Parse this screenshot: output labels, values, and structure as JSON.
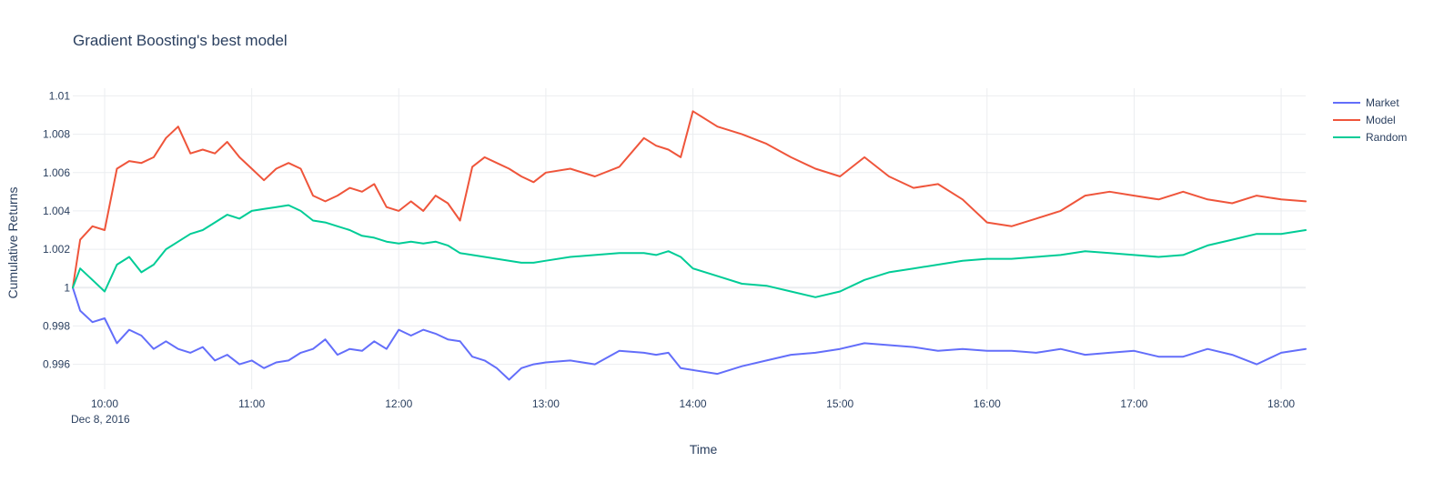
{
  "chart_data": {
    "type": "line",
    "title": "Gradient Boosting's best model",
    "xlabel": "Time",
    "ylabel": "Cumulative Returns",
    "x_tick_labels": [
      "10:00",
      "11:00",
      "12:00",
      "13:00",
      "14:00",
      "15:00",
      "16:00",
      "17:00",
      "18:00"
    ],
    "x_tick_hours": [
      10,
      11,
      12,
      13,
      14,
      15,
      16,
      17,
      18
    ],
    "x_first_tick_date": "Dec 8, 2016",
    "y_tick_labels": [
      "0.996",
      "0.998",
      "1",
      "1.002",
      "1.004",
      "1.006",
      "1.008",
      "1.01"
    ],
    "y_tick_values": [
      0.996,
      0.998,
      1.0,
      1.002,
      1.004,
      1.006,
      1.008,
      1.01
    ],
    "xlim": [
      "2016-12-08 09:47",
      "2016-12-08 18:10"
    ],
    "ylim": [
      0.9947,
      1.0104
    ],
    "grid": true,
    "legend_position": "top-right",
    "x": [
      "09:47",
      "09:50",
      "09:55",
      "10:00",
      "10:05",
      "10:10",
      "10:15",
      "10:20",
      "10:25",
      "10:30",
      "10:35",
      "10:40",
      "10:45",
      "10:50",
      "10:55",
      "11:00",
      "11:05",
      "11:10",
      "11:15",
      "11:20",
      "11:25",
      "11:30",
      "11:35",
      "11:40",
      "11:45",
      "11:50",
      "11:55",
      "12:00",
      "12:05",
      "12:10",
      "12:15",
      "12:20",
      "12:25",
      "12:30",
      "12:35",
      "12:40",
      "12:45",
      "12:50",
      "12:55",
      "13:00",
      "13:10",
      "13:20",
      "13:30",
      "13:40",
      "13:45",
      "13:50",
      "13:55",
      "14:00",
      "14:10",
      "14:20",
      "14:30",
      "14:40",
      "14:50",
      "15:00",
      "15:10",
      "15:20",
      "15:30",
      "15:40",
      "15:50",
      "16:00",
      "16:10",
      "16:20",
      "16:30",
      "16:40",
      "16:50",
      "17:00",
      "17:10",
      "17:20",
      "17:30",
      "17:40",
      "17:50",
      "18:00",
      "18:10"
    ],
    "series": [
      {
        "name": "Market",
        "color": "#636efa",
        "values": [
          1.0,
          0.9988,
          0.9982,
          0.9984,
          0.9971,
          0.9978,
          0.9975,
          0.9968,
          0.9972,
          0.9968,
          0.9966,
          0.9969,
          0.9962,
          0.9965,
          0.996,
          0.9962,
          0.9958,
          0.9961,
          0.9962,
          0.9966,
          0.9968,
          0.9973,
          0.9965,
          0.9968,
          0.9967,
          0.9972,
          0.9968,
          0.9978,
          0.9975,
          0.9978,
          0.9976,
          0.9973,
          0.9972,
          0.9964,
          0.9962,
          0.9958,
          0.9952,
          0.9958,
          0.996,
          0.9961,
          0.9962,
          0.996,
          0.9967,
          0.9966,
          0.9965,
          0.9966,
          0.9958,
          0.9957,
          0.9955,
          0.9959,
          0.9962,
          0.9965,
          0.9966,
          0.9968,
          0.9971,
          0.997,
          0.9969,
          0.9967,
          0.9968,
          0.9967,
          0.9967,
          0.9966,
          0.9968,
          0.9965,
          0.9966,
          0.9967,
          0.9964,
          0.9964,
          0.9968,
          0.9965,
          0.996,
          0.9966,
          0.9968
        ]
      },
      {
        "name": "Model",
        "color": "#ef553b",
        "values": [
          1.0,
          1.0025,
          1.0032,
          1.003,
          1.0062,
          1.0066,
          1.0065,
          1.0068,
          1.0078,
          1.0084,
          1.007,
          1.0072,
          1.007,
          1.0076,
          1.0068,
          1.0062,
          1.0056,
          1.0062,
          1.0065,
          1.0062,
          1.0048,
          1.0045,
          1.0048,
          1.0052,
          1.005,
          1.0054,
          1.0042,
          1.004,
          1.0045,
          1.004,
          1.0048,
          1.0044,
          1.0035,
          1.0063,
          1.0068,
          1.0065,
          1.0062,
          1.0058,
          1.0055,
          1.006,
          1.0062,
          1.0058,
          1.0063,
          1.0078,
          1.0074,
          1.0072,
          1.0068,
          1.0092,
          1.0084,
          1.008,
          1.0075,
          1.0068,
          1.0062,
          1.0058,
          1.0068,
          1.0058,
          1.0052,
          1.0054,
          1.0046,
          1.0034,
          1.0032,
          1.0036,
          1.004,
          1.0048,
          1.005,
          1.0048,
          1.0046,
          1.005,
          1.0046,
          1.0044,
          1.0048,
          1.0046,
          1.0045
        ]
      },
      {
        "name": "Random",
        "color": "#00cc96",
        "values": [
          1.0,
          1.001,
          1.0004,
          0.9998,
          1.0012,
          1.0016,
          1.0008,
          1.0012,
          1.002,
          1.0024,
          1.0028,
          1.003,
          1.0034,
          1.0038,
          1.0036,
          1.004,
          1.0041,
          1.0042,
          1.0043,
          1.004,
          1.0035,
          1.0034,
          1.0032,
          1.003,
          1.0027,
          1.0026,
          1.0024,
          1.0023,
          1.0024,
          1.0023,
          1.0024,
          1.0022,
          1.0018,
          1.0017,
          1.0016,
          1.0015,
          1.0014,
          1.0013,
          1.0013,
          1.0014,
          1.0016,
          1.0017,
          1.0018,
          1.0018,
          1.0017,
          1.0019,
          1.0016,
          1.001,
          1.0006,
          1.0002,
          1.0001,
          0.9998,
          0.9995,
          0.9998,
          1.0004,
          1.0008,
          1.001,
          1.0012,
          1.0014,
          1.0015,
          1.0015,
          1.0016,
          1.0017,
          1.0019,
          1.0018,
          1.0017,
          1.0016,
          1.0017,
          1.0022,
          1.0025,
          1.0028,
          1.0028,
          1.003
        ]
      }
    ]
  }
}
